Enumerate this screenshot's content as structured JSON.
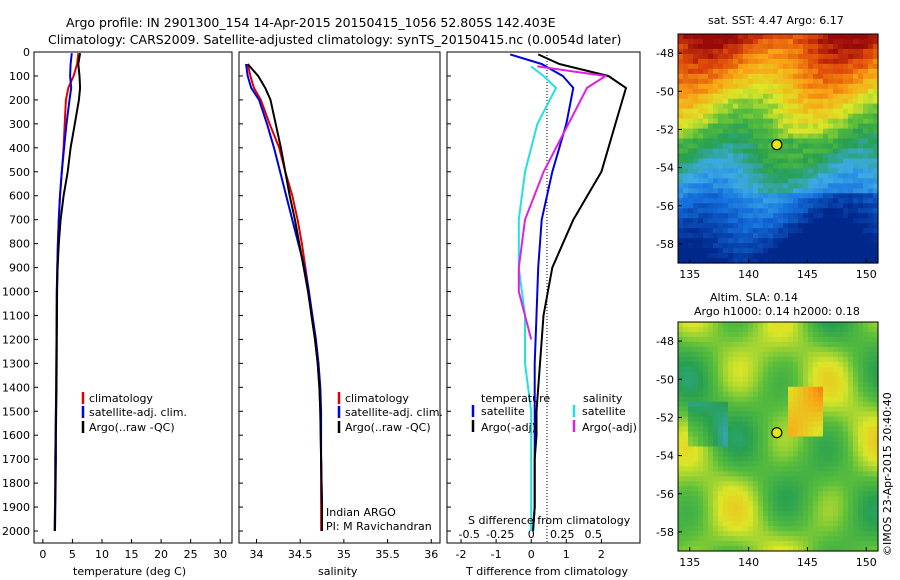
{
  "header": {
    "line1": "Argo profile: IN 2901300_154 14-Apr-2015 20150415_1056 52.805S 142.403E",
    "line2": "Climatology: CARS2009. Satellite-adjusted climatology: synTS_20150415.nc (0.0054d later)"
  },
  "depth_ticks": [
    "0",
    "100",
    "200",
    "300",
    "400",
    "500",
    "600",
    "700",
    "800",
    "900",
    "1000",
    "1100",
    "1200",
    "1300",
    "1400",
    "1500",
    "1600",
    "1700",
    "1800",
    "1900",
    "2000"
  ],
  "colors": {
    "climatology": "#e00000",
    "satellite": "#0000dd",
    "argo": "#000000",
    "sal_satellite": "#22e0e0",
    "sal_argo": "#e020e0"
  },
  "panels": {
    "temperature": {
      "xlabel": "temperature (deg C)",
      "xticks": [
        "0",
        "5",
        "10",
        "15",
        "20",
        "25",
        "30"
      ],
      "legend": [
        "climatology",
        "satellite-adj. clim.",
        "Argo(..raw -QC)"
      ]
    },
    "salinity": {
      "xlabel": "salinity",
      "xticks": [
        "34",
        "34.5",
        "35",
        "35.5",
        "36"
      ],
      "legend": [
        "climatology",
        "satellite-adj. clim.",
        "Argo(..raw -QC)"
      ],
      "note1": "Indian ARGO",
      "note2": "PI: M Ravichandran"
    },
    "difference": {
      "xlabel": "T difference from climatology",
      "xticks": [
        "-2",
        "-1",
        "0",
        "1",
        "2"
      ],
      "s_title": "S difference from climatology",
      "s_ticks": [
        "-0.5",
        "-0.25",
        "0",
        "0.25",
        "0.5"
      ],
      "legend_t_title": "temperature",
      "legend_t": [
        "satellite",
        "Argo(-adj)"
      ],
      "legend_s_title": "salinity",
      "legend_s": [
        "satellite",
        "Argo(-adj)"
      ]
    }
  },
  "maps": {
    "sst": {
      "title": "sat. SST: 4.47  Argo: 6.17",
      "lat_ticks": [
        "-48",
        "-50",
        "-52",
        "-54",
        "-56",
        "-58"
      ],
      "lon_ticks": [
        "135",
        "140",
        "145",
        "150"
      ],
      "marker": {
        "lon": 142.4,
        "lat": -52.8
      }
    },
    "sla": {
      "title1": "Altim. SLA: 0.14",
      "title2": "Argo h1000: 0.14 h2000: 0.18",
      "lat_ticks": [
        "-48",
        "-50",
        "-52",
        "-54",
        "-56",
        "-58"
      ],
      "lon_ticks": [
        "135",
        "140",
        "145",
        "150"
      ],
      "marker": {
        "lon": 142.4,
        "lat": -52.8
      }
    },
    "side_label": "©IMOS 23-Apr-2015 20:40:40"
  },
  "chart_data": [
    {
      "type": "line",
      "title": "",
      "xlabel": "temperature (deg C)",
      "ylabel": "",
      "xlim": [
        -1.5,
        32
      ],
      "ylim": [
        2050,
        0
      ],
      "series": [
        {
          "name": "climatology",
          "color": "#e00000",
          "x": [
            6.0,
            5.8,
            5.2,
            4.3,
            3.9,
            3.7,
            3.5,
            3.2,
            2.9,
            2.7,
            2.55,
            2.45,
            2.35,
            2.3,
            2.25,
            2.2,
            2.15,
            2.1,
            2.1,
            2.05,
            2.0
          ],
          "y": [
            5,
            50,
            100,
            150,
            200,
            300,
            400,
            500,
            600,
            700,
            800,
            900,
            1000,
            1200,
            1400,
            1500,
            1600,
            1700,
            1800,
            1900,
            2000
          ]
        },
        {
          "name": "satellite-adj. clim.",
          "color": "#0000dd",
          "x": [
            4.9,
            4.7,
            4.6,
            4.8,
            4.5,
            4.0,
            3.6,
            3.2,
            2.9,
            2.7,
            2.55,
            2.45,
            2.35,
            2.3,
            2.25,
            2.2,
            2.15,
            2.1,
            2.1,
            2.05,
            2.0
          ],
          "y": [
            5,
            50,
            100,
            150,
            200,
            300,
            400,
            500,
            600,
            700,
            800,
            900,
            1000,
            1200,
            1400,
            1500,
            1600,
            1700,
            1800,
            1900,
            2000
          ]
        },
        {
          "name": "Argo(..raw -QC)",
          "color": "#000000",
          "x": [
            6.3,
            6.0,
            6.2,
            6.3,
            6.1,
            5.4,
            4.7,
            4.2,
            3.5,
            3.0,
            2.7,
            2.5,
            2.4,
            2.35,
            2.3,
            2.25,
            2.2,
            2.2,
            2.15,
            2.1,
            2.05
          ],
          "y": [
            5,
            50,
            100,
            150,
            200,
            300,
            400,
            500,
            600,
            700,
            800,
            900,
            1000,
            1200,
            1400,
            1500,
            1600,
            1700,
            1800,
            1900,
            2000
          ]
        }
      ]
    },
    {
      "type": "line",
      "title": "",
      "xlabel": "salinity",
      "ylabel": "",
      "xlim": [
        33.8,
        36.1
      ],
      "ylim": [
        2050,
        0
      ],
      "series": [
        {
          "name": "climatology",
          "color": "#e00000",
          "x": [
            33.9,
            33.93,
            33.97,
            34.05,
            34.15,
            34.26,
            34.33,
            34.41,
            34.47,
            34.52,
            34.56,
            34.6,
            34.63,
            34.67,
            34.7,
            34.72,
            34.73,
            34.74,
            34.74,
            34.74
          ],
          "y": [
            50,
            100,
            150,
            200,
            300,
            400,
            500,
            600,
            700,
            800,
            900,
            1000,
            1100,
            1200,
            1300,
            1400,
            1500,
            1700,
            1900,
            2000
          ]
        },
        {
          "name": "satellite-adj. clim.",
          "color": "#0000dd",
          "x": [
            33.88,
            33.9,
            33.94,
            34.03,
            34.12,
            34.2,
            34.27,
            34.34,
            34.41,
            34.48,
            34.55,
            34.6,
            34.64,
            34.68,
            34.71,
            34.73,
            34.74,
            34.74,
            34.75,
            34.75
          ],
          "y": [
            50,
            100,
            150,
            200,
            300,
            400,
            500,
            600,
            700,
            800,
            900,
            1000,
            1100,
            1200,
            1300,
            1400,
            1500,
            1700,
            1900,
            2000
          ]
        },
        {
          "name": "Argo(..raw -QC)",
          "color": "#000000",
          "x": [
            33.9,
            34.02,
            34.1,
            34.16,
            34.22,
            34.28,
            34.33,
            34.38,
            34.44,
            34.49,
            34.54,
            34.59,
            34.63,
            34.67,
            34.7,
            34.72,
            34.73,
            34.74,
            34.75,
            34.75
          ],
          "y": [
            50,
            100,
            150,
            200,
            300,
            400,
            500,
            600,
            700,
            800,
            900,
            1000,
            1100,
            1200,
            1300,
            1400,
            1500,
            1700,
            1900,
            2000
          ]
        }
      ]
    },
    {
      "type": "line",
      "title": "S difference from climatology",
      "xlabel": "T difference from climatology",
      "ylabel": "",
      "xlim": [
        -2.4,
        3.1
      ],
      "ylim": [
        2050,
        0
      ],
      "series": [
        {
          "name": "satellite",
          "color": "#0000dd",
          "x": [
            -0.6,
            0.3,
            0.9,
            1.2,
            1.0,
            0.6,
            0.3,
            0.2,
            0.15,
            0.1,
            0.1,
            0.1,
            0.1,
            0.1,
            0.05
          ],
          "y": [
            10,
            50,
            100,
            150,
            300,
            500,
            700,
            900,
            1100,
            1300,
            1500,
            1600,
            1700,
            1900,
            2000
          ]
        },
        {
          "name": "Argo(-adj)",
          "color": "#000000",
          "x": [
            0.2,
            0.8,
            2.2,
            2.7,
            2.4,
            2.0,
            1.2,
            0.6,
            0.35,
            0.25,
            0.15,
            0.15,
            0.1,
            0.1,
            0.05
          ],
          "y": [
            10,
            50,
            100,
            150,
            300,
            500,
            700,
            900,
            1100,
            1300,
            1500,
            1600,
            1700,
            1900,
            2000
          ]
        },
        {
          "name": "sal satellite",
          "color": "#22e0e0",
          "x": [
            0.0,
            0.1,
            0.2,
            0.05,
            -0.05,
            -0.1,
            -0.1,
            -0.05,
            -0.05,
            0.0,
            0.0,
            0.0,
            0.0,
            0.0
          ],
          "y": [
            60,
            100,
            150,
            300,
            500,
            700,
            900,
            1100,
            1300,
            1500,
            1600,
            1700,
            1900,
            2000
          ]
        },
        {
          "name": "sal Argo(-adj)",
          "color": "#e020e0",
          "x": [
            0.05,
            0.6,
            0.45,
            0.3,
            0.1,
            -0.05,
            -0.1,
            -0.1,
            -0.05,
            0.0
          ],
          "y": [
            60,
            100,
            150,
            300,
            500,
            700,
            900,
            1000,
            1100,
            1200
          ]
        }
      ]
    }
  ]
}
